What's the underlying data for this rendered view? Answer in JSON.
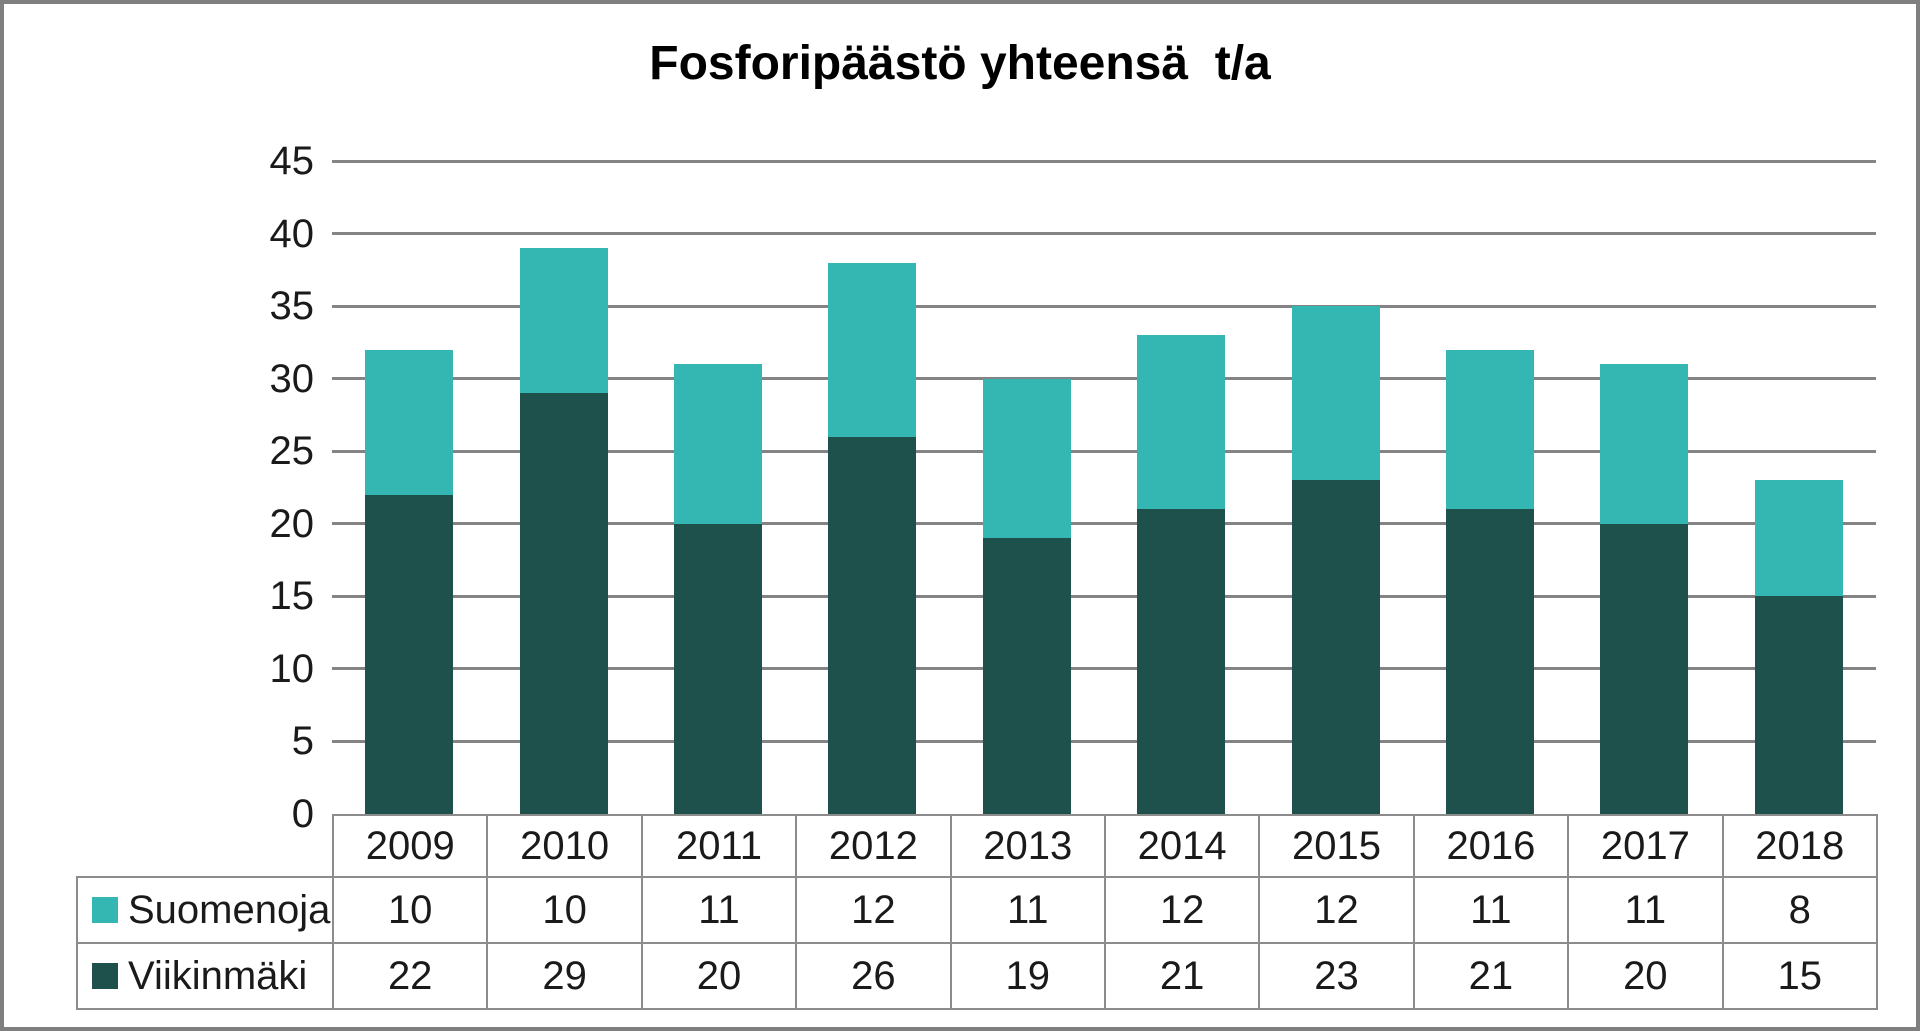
{
  "chart_data": {
    "type": "bar",
    "stacked": true,
    "title": "Fosforipäästö yhteensä  t/a",
    "categories": [
      "2009",
      "2010",
      "2011",
      "2012",
      "2013",
      "2014",
      "2015",
      "2016",
      "2017",
      "2018"
    ],
    "series": [
      {
        "name": "Suomenoja",
        "color": "#34b7b2",
        "values": [
          10,
          10,
          11,
          12,
          11,
          12,
          12,
          11,
          11,
          8
        ]
      },
      {
        "name": "Viikinmäki",
        "color": "#1e504c",
        "values": [
          22,
          29,
          20,
          26,
          19,
          21,
          23,
          21,
          20,
          15
        ]
      }
    ],
    "stack_bottom_series": "Viikinmäki",
    "ylim": [
      0,
      45
    ],
    "yticks": [
      0,
      5,
      10,
      15,
      20,
      25,
      30,
      35,
      40,
      45
    ],
    "xlabel": "",
    "ylabel": "",
    "grid": true,
    "legend_position": "table-below-left"
  },
  "colors": {
    "gridline": "#848484",
    "table_border": "#8c8c8c",
    "frame": "#7f7f7f",
    "text": "#1a1a1a",
    "background": "#ffffff"
  }
}
